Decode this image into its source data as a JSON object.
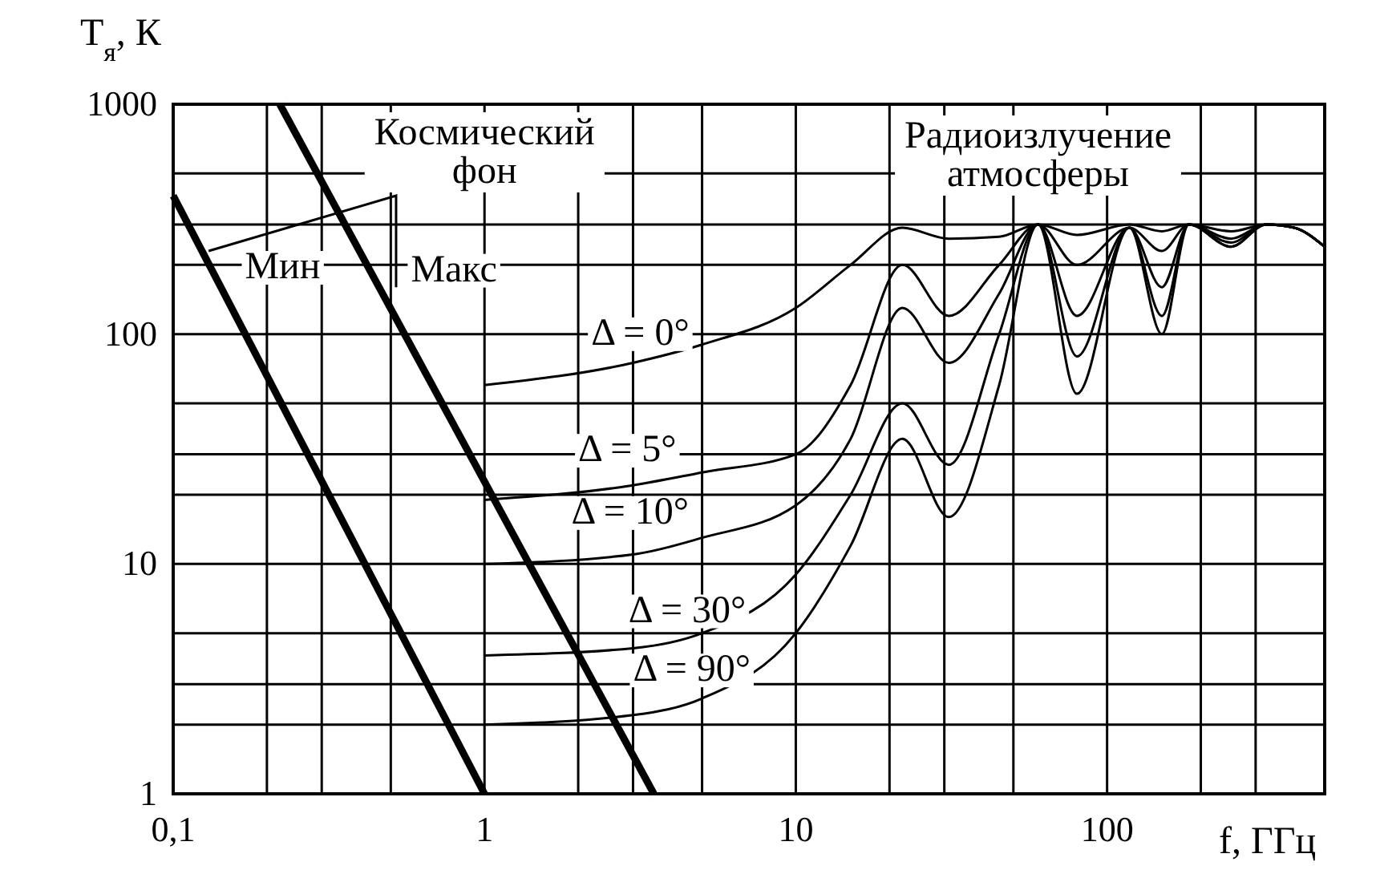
{
  "chart_data": {
    "type": "line",
    "xlabel": "f, ГГц",
    "ylabel": "T$_{я}$, К",
    "log": "xy",
    "grid": true,
    "line_style": "solid",
    "xlim": [
      0.1,
      500
    ],
    "ylim": [
      1,
      1000
    ],
    "xticks": [
      {
        "value": 0.1,
        "label": "0,1"
      },
      {
        "value": 0.2,
        "label": null
      },
      {
        "value": 0.3,
        "label": null
      },
      {
        "value": 0.5,
        "label": null
      },
      1,
      {
        "value": 2,
        "label": null
      },
      {
        "value": 3,
        "label": null
      },
      {
        "value": 5,
        "label": null
      },
      10,
      {
        "value": 20,
        "label": null
      },
      {
        "value": 30,
        "label": null
      },
      {
        "value": 50,
        "label": null
      },
      100,
      {
        "value": 200,
        "label": null
      },
      {
        "value": 300,
        "label": null
      }
    ],
    "yticks": [
      1,
      {
        "value": 2,
        "label": null
      },
      {
        "value": 3,
        "label": null
      },
      {
        "value": 5,
        "label": null
      },
      10,
      {
        "value": 20,
        "label": null
      },
      {
        "value": 30,
        "label": null
      },
      {
        "value": 50,
        "label": null
      },
      100,
      {
        "value": 200,
        "label": null
      },
      {
        "value": 300,
        "label": null
      },
      {
        "value": 500,
        "label": null
      },
      1000
    ],
    "annotations": [
      "Космический фон",
      "Радиоизлучение атмосферы"
    ],
    "series": [
      {
        "name": "Мин",
        "color": "#000000",
        "x": [
          0.1,
          1
        ],
        "values": [
          400,
          1
        ]
      },
      {
        "name": "Макс",
        "color": "#000000",
        "x": [
          0.22,
          3.5
        ],
        "values": [
          1000,
          1
        ]
      },
      {
        "name": "Δ = 0°",
        "color": "#000000",
        "x": [
          1,
          3,
          5,
          10,
          15,
          22,
          31,
          45,
          60,
          80,
          118,
          150,
          183,
          250,
          325,
          400,
          500
        ],
        "values": [
          60,
          75,
          90,
          130,
          200,
          290,
          260,
          265,
          300,
          270,
          300,
          280,
          300,
          280,
          300,
          290,
          240
        ]
      },
      {
        "name": "Δ = 5°",
        "color": "#000000",
        "x": [
          1,
          3,
          5,
          10,
          15,
          22,
          31,
          45,
          60,
          80,
          118,
          150,
          183,
          250,
          325,
          400,
          500
        ],
        "values": [
          19,
          22,
          25,
          30,
          60,
          200,
          120,
          200,
          300,
          200,
          290,
          230,
          300,
          260,
          300,
          290,
          240
        ]
      },
      {
        "name": "Δ = 10°",
        "color": "#000000",
        "x": [
          1,
          3,
          5,
          10,
          15,
          22,
          31,
          45,
          60,
          80,
          118,
          150,
          183,
          250,
          325,
          400,
          500
        ],
        "values": [
          10,
          11,
          13,
          18,
          35,
          130,
          75,
          150,
          300,
          120,
          290,
          160,
          300,
          250,
          300,
          290,
          240
        ]
      },
      {
        "name": "Δ = 30°",
        "color": "#000000",
        "x": [
          1,
          3,
          5,
          10,
          15,
          22,
          31,
          45,
          60,
          80,
          118,
          150,
          183,
          250,
          325,
          400,
          500
        ],
        "values": [
          4,
          4.3,
          5,
          9,
          20,
          50,
          27,
          100,
          300,
          80,
          290,
          120,
          300,
          240,
          300,
          290,
          240
        ]
      },
      {
        "name": "Δ = 90°",
        "color": "#000000",
        "x": [
          1,
          3,
          5,
          10,
          15,
          22,
          31,
          45,
          60,
          80,
          118,
          150,
          183,
          250,
          325,
          400,
          500
        ],
        "values": [
          2,
          2.2,
          2.6,
          5,
          12,
          35,
          16,
          60,
          300,
          55,
          290,
          100,
          300,
          240,
          300,
          290,
          240
        ]
      }
    ]
  }
}
